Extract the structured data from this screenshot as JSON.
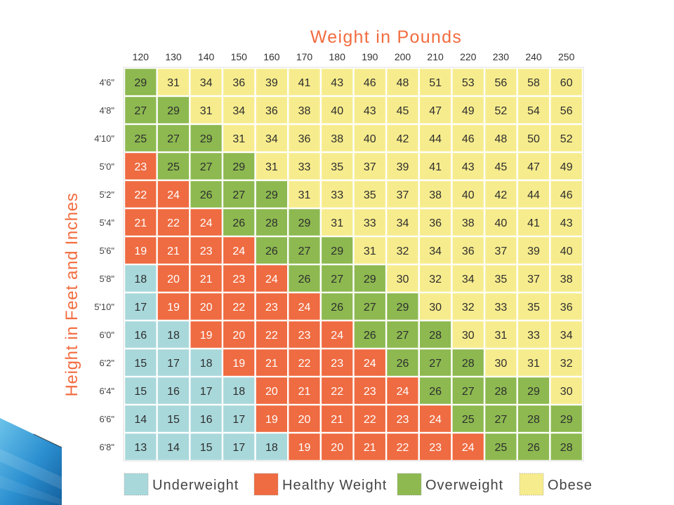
{
  "slide": {
    "decoration_colors": [
      "#6cc3ea",
      "#2b8fd0",
      "#135f9c"
    ]
  },
  "chart_data": {
    "type": "heatmap",
    "xlabel": "Weight in Pounds",
    "ylabel": "Height in Feet and Inches",
    "xlabel_position": "top",
    "legend_position": "bottom",
    "label_color": "#f26c3f",
    "x": [
      120,
      130,
      140,
      150,
      160,
      170,
      180,
      190,
      200,
      210,
      220,
      230,
      240,
      250
    ],
    "y": [
      "4'6\"",
      "4'8\"",
      "4'10\"",
      "5'0\"",
      "5'2\"",
      "5'4\"",
      "5'6\"",
      "5'8\"",
      "5'10\"",
      "6'0\"",
      "6'2\"",
      "6'4\"",
      "6'6\"",
      "6'8\""
    ],
    "values": [
      [
        29,
        31,
        34,
        36,
        39,
        41,
        43,
        46,
        48,
        51,
        53,
        56,
        58,
        60
      ],
      [
        27,
        29,
        31,
        34,
        36,
        38,
        40,
        43,
        45,
        47,
        49,
        52,
        54,
        56
      ],
      [
        25,
        27,
        29,
        31,
        34,
        36,
        38,
        40,
        42,
        44,
        46,
        48,
        50,
        52
      ],
      [
        23,
        25,
        27,
        29,
        31,
        33,
        35,
        37,
        39,
        41,
        43,
        45,
        47,
        49
      ],
      [
        22,
        24,
        26,
        27,
        29,
        31,
        33,
        35,
        37,
        38,
        40,
        42,
        44,
        46
      ],
      [
        21,
        22,
        24,
        26,
        28,
        29,
        31,
        33,
        34,
        36,
        38,
        40,
        41,
        43
      ],
      [
        19,
        21,
        23,
        24,
        26,
        27,
        29,
        31,
        32,
        34,
        36,
        37,
        39,
        40
      ],
      [
        18,
        20,
        21,
        23,
        24,
        26,
        27,
        29,
        30,
        32,
        34,
        35,
        37,
        38
      ],
      [
        17,
        19,
        20,
        22,
        23,
        24,
        26,
        27,
        29,
        30,
        32,
        33,
        35,
        36
      ],
      [
        16,
        18,
        19,
        20,
        22,
        23,
        24,
        26,
        27,
        28,
        30,
        31,
        33,
        34
      ],
      [
        15,
        17,
        18,
        19,
        21,
        22,
        23,
        24,
        26,
        27,
        28,
        30,
        31,
        32
      ],
      [
        15,
        16,
        17,
        18,
        20,
        21,
        22,
        23,
        24,
        26,
        27,
        28,
        29,
        30
      ],
      [
        14,
        15,
        16,
        17,
        19,
        20,
        21,
        22,
        23,
        24,
        25,
        27,
        28,
        29
      ],
      [
        13,
        14,
        15,
        17,
        18,
        19,
        20,
        21,
        22,
        23,
        24,
        25,
        26,
        28
      ]
    ],
    "cell_category": [
      [
        "Overweight",
        "Obese",
        "Obese",
        "Obese",
        "Obese",
        "Obese",
        "Obese",
        "Obese",
        "Obese",
        "Obese",
        "Obese",
        "Obese",
        "Obese",
        "Obese"
      ],
      [
        "Overweight",
        "Overweight",
        "Obese",
        "Obese",
        "Obese",
        "Obese",
        "Obese",
        "Obese",
        "Obese",
        "Obese",
        "Obese",
        "Obese",
        "Obese",
        "Obese"
      ],
      [
        "Overweight",
        "Overweight",
        "Overweight",
        "Obese",
        "Obese",
        "Obese",
        "Obese",
        "Obese",
        "Obese",
        "Obese",
        "Obese",
        "Obese",
        "Obese",
        "Obese"
      ],
      [
        "Healthy Weight",
        "Overweight",
        "Overweight",
        "Overweight",
        "Obese",
        "Obese",
        "Obese",
        "Obese",
        "Obese",
        "Obese",
        "Obese",
        "Obese",
        "Obese",
        "Obese"
      ],
      [
        "Healthy Weight",
        "Healthy Weight",
        "Overweight",
        "Overweight",
        "Overweight",
        "Obese",
        "Obese",
        "Obese",
        "Obese",
        "Obese",
        "Obese",
        "Obese",
        "Obese",
        "Obese"
      ],
      [
        "Healthy Weight",
        "Healthy Weight",
        "Healthy Weight",
        "Overweight",
        "Overweight",
        "Overweight",
        "Obese",
        "Obese",
        "Obese",
        "Obese",
        "Obese",
        "Obese",
        "Obese",
        "Obese"
      ],
      [
        "Healthy Weight",
        "Healthy Weight",
        "Healthy Weight",
        "Healthy Weight",
        "Overweight",
        "Overweight",
        "Overweight",
        "Obese",
        "Obese",
        "Obese",
        "Obese",
        "Obese",
        "Obese",
        "Obese"
      ],
      [
        "Underweight",
        "Healthy Weight",
        "Healthy Weight",
        "Healthy Weight",
        "Healthy Weight",
        "Overweight",
        "Overweight",
        "Overweight",
        "Obese",
        "Obese",
        "Obese",
        "Obese",
        "Obese",
        "Obese"
      ],
      [
        "Underweight",
        "Healthy Weight",
        "Healthy Weight",
        "Healthy Weight",
        "Healthy Weight",
        "Healthy Weight",
        "Overweight",
        "Overweight",
        "Overweight",
        "Obese",
        "Obese",
        "Obese",
        "Obese",
        "Obese"
      ],
      [
        "Underweight",
        "Underweight",
        "Healthy Weight",
        "Healthy Weight",
        "Healthy Weight",
        "Healthy Weight",
        "Healthy Weight",
        "Overweight",
        "Overweight",
        "Overweight",
        "Obese",
        "Obese",
        "Obese",
        "Obese"
      ],
      [
        "Underweight",
        "Underweight",
        "Underweight",
        "Healthy Weight",
        "Healthy Weight",
        "Healthy Weight",
        "Healthy Weight",
        "Healthy Weight",
        "Overweight",
        "Overweight",
        "Overweight",
        "Obese",
        "Obese",
        "Obese"
      ],
      [
        "Underweight",
        "Underweight",
        "Underweight",
        "Underweight",
        "Healthy Weight",
        "Healthy Weight",
        "Healthy Weight",
        "Healthy Weight",
        "Healthy Weight",
        "Overweight",
        "Overweight",
        "Overweight",
        "Overweight",
        "Obese"
      ],
      [
        "Underweight",
        "Underweight",
        "Underweight",
        "Underweight",
        "Healthy Weight",
        "Healthy Weight",
        "Healthy Weight",
        "Healthy Weight",
        "Healthy Weight",
        "Healthy Weight",
        "Overweight",
        "Overweight",
        "Overweight",
        "Overweight"
      ],
      [
        "Underweight",
        "Underweight",
        "Underweight",
        "Underweight",
        "Underweight",
        "Healthy Weight",
        "Healthy Weight",
        "Healthy Weight",
        "Healthy Weight",
        "Healthy Weight",
        "Healthy Weight",
        "Overweight",
        "Overweight",
        "Overweight"
      ]
    ],
    "legend": [
      {
        "label": "Underweight",
        "color": "#a9d8db",
        "text_color": "#2e2e2e"
      },
      {
        "label": "Healthy Weight",
        "color": "#ef6b41",
        "text_color": "#ffffff"
      },
      {
        "label": "Overweight",
        "color": "#8db950",
        "text_color": "#2e2e2e"
      },
      {
        "label": "Obese",
        "color": "#f7ec8d",
        "text_color": "#2e2e2e"
      }
    ]
  }
}
